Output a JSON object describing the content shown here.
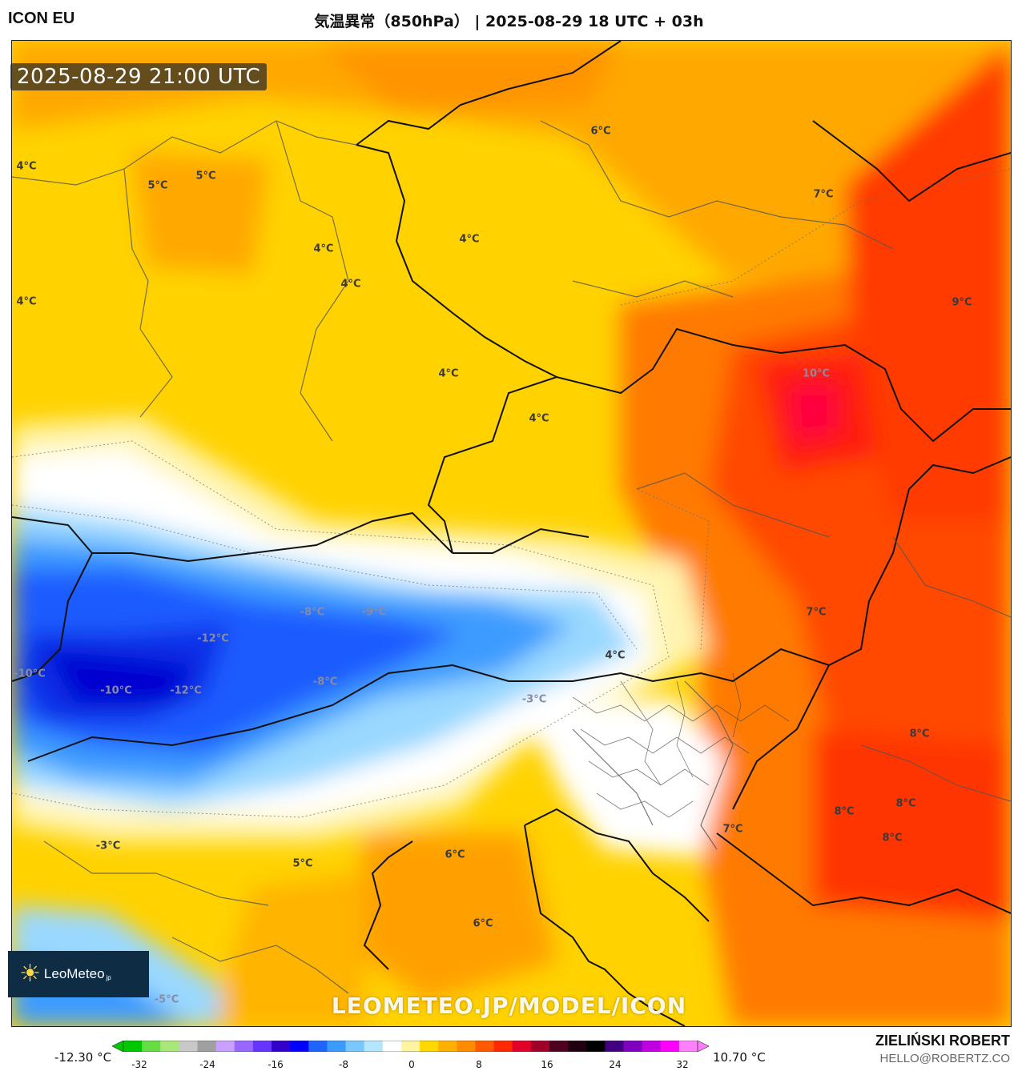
{
  "header": {
    "model": "ICON EU",
    "title": "気温異常（850hPa） | 2025-08-29 18 UTC + 03h"
  },
  "map": {
    "valid_time": "2025-08-29 21:00 UTC",
    "watermark": "LEOMETEO.JP/MODEL/ICON",
    "logo_text": "LeoMeteo",
    "logo_suffix": "jp",
    "labels": [
      "6°C",
      "5°C",
      "5°C",
      "4°C",
      "4°C",
      "4°C",
      "4°C",
      "4°C",
      "4°C",
      "4°C",
      "7°C",
      "9°C",
      "10°C",
      "-8°C",
      "-9°C",
      "-12°C",
      "-10°C",
      "-10°C",
      "-12°C",
      "-8°C",
      "-3°C",
      "4°C",
      "7°C",
      "8°C",
      "8°C",
      "8°C",
      "8°C",
      "7°C",
      "6°C",
      "6°C",
      "-3°C",
      "5°C",
      "-5°C"
    ]
  },
  "legend": {
    "min_label": "-12.30 °C",
    "max_label": "10.70 °C",
    "ticks": [
      "-32",
      "-24",
      "-16",
      "-8",
      "0",
      "8",
      "16",
      "24",
      "32"
    ],
    "colors": [
      "#00c800",
      "#66dd44",
      "#a8e87a",
      "#c8c8c8",
      "#a0a0a0",
      "#c8a0ff",
      "#9966ff",
      "#6633ff",
      "#3300cc",
      "#0000ff",
      "#1e64ff",
      "#3c9bff",
      "#78c8ff",
      "#b4e6ff",
      "#ffffff",
      "#fff5a0",
      "#ffd800",
      "#ffb000",
      "#ff8c00",
      "#ff5a00",
      "#ff2800",
      "#e00028",
      "#a00028",
      "#500020",
      "#200010",
      "#000000",
      "#400080",
      "#8000c0",
      "#c000e0",
      "#ff00ff",
      "#ff80ff"
    ]
  },
  "credits": {
    "author": "ZIELIŃSKI ROBERT",
    "email": "HELLO@ROBERTZ.CO"
  }
}
